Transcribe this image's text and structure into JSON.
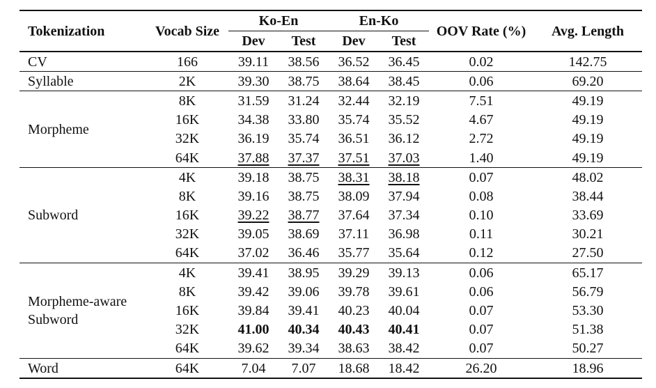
{
  "table": {
    "headers": {
      "tokenization": "Tokenization",
      "vocab_size": "Vocab Size",
      "ko_en": "Ko-En",
      "en_ko": "En-Ko",
      "dev": "Dev",
      "test": "Test",
      "oov_rate": "OOV Rate (%)",
      "avg_length": "Avg. Length"
    },
    "groups": [
      {
        "name_lines": [
          "CV"
        ],
        "rows": [
          {
            "vocab": "166",
            "koen_dev": "39.11",
            "koen_test": "38.56",
            "enko_dev": "36.52",
            "enko_test": "36.45",
            "oov": "0.02",
            "avg": "142.75"
          }
        ]
      },
      {
        "name_lines": [
          "Syllable"
        ],
        "rows": [
          {
            "vocab": "2K",
            "koen_dev": "39.30",
            "koen_test": "38.75",
            "enko_dev": "38.64",
            "enko_test": "38.45",
            "oov": "0.06",
            "avg": "69.20"
          }
        ]
      },
      {
        "name_lines": [
          "Morpheme"
        ],
        "rows": [
          {
            "vocab": "8K",
            "koen_dev": "31.59",
            "koen_test": "31.24",
            "enko_dev": "32.44",
            "enko_test": "32.19",
            "oov": "7.51",
            "avg": "49.19"
          },
          {
            "vocab": "16K",
            "koen_dev": "34.38",
            "koen_test": "33.80",
            "enko_dev": "35.74",
            "enko_test": "35.52",
            "oov": "4.67",
            "avg": "49.19"
          },
          {
            "vocab": "32K",
            "koen_dev": "36.19",
            "koen_test": "35.74",
            "enko_dev": "36.51",
            "enko_test": "36.12",
            "oov": "2.72",
            "avg": "49.19"
          },
          {
            "vocab": "64K",
            "koen_dev": "37.88",
            "koen_test": "37.37",
            "enko_dev": "37.51",
            "enko_test": "37.03",
            "oov": "1.40",
            "avg": "49.19",
            "underline": [
              "koen_dev",
              "koen_test",
              "enko_dev",
              "enko_test"
            ]
          }
        ]
      },
      {
        "name_lines": [
          "Subword"
        ],
        "rows": [
          {
            "vocab": "4K",
            "koen_dev": "39.18",
            "koen_test": "38.75",
            "enko_dev": "38.31",
            "enko_test": "38.18",
            "oov": "0.07",
            "avg": "48.02",
            "underline": [
              "enko_dev",
              "enko_test"
            ]
          },
          {
            "vocab": "8K",
            "koen_dev": "39.16",
            "koen_test": "38.75",
            "enko_dev": "38.09",
            "enko_test": "37.94",
            "oov": "0.08",
            "avg": "38.44"
          },
          {
            "vocab": "16K",
            "koen_dev": "39.22",
            "koen_test": "38.77",
            "enko_dev": "37.64",
            "enko_test": "37.34",
            "oov": "0.10",
            "avg": "33.69",
            "underline": [
              "koen_dev",
              "koen_test"
            ]
          },
          {
            "vocab": "32K",
            "koen_dev": "39.05",
            "koen_test": "38.69",
            "enko_dev": "37.11",
            "enko_test": "36.98",
            "oov": "0.11",
            "avg": "30.21"
          },
          {
            "vocab": "64K",
            "koen_dev": "37.02",
            "koen_test": "36.46",
            "enko_dev": "35.77",
            "enko_test": "35.64",
            "oov": "0.12",
            "avg": "27.50"
          }
        ]
      },
      {
        "name_lines": [
          "Morpheme-aware",
          "Subword"
        ],
        "rows": [
          {
            "vocab": "4K",
            "koen_dev": "39.41",
            "koen_test": "38.95",
            "enko_dev": "39.29",
            "enko_test": "39.13",
            "oov": "0.06",
            "avg": "65.17"
          },
          {
            "vocab": "8K",
            "koen_dev": "39.42",
            "koen_test": "39.06",
            "enko_dev": "39.78",
            "enko_test": "39.61",
            "oov": "0.06",
            "avg": "56.79"
          },
          {
            "vocab": "16K",
            "koen_dev": "39.84",
            "koen_test": "39.41",
            "enko_dev": "40.23",
            "enko_test": "40.04",
            "oov": "0.07",
            "avg": "53.30"
          },
          {
            "vocab": "32K",
            "koen_dev": "41.00",
            "koen_test": "40.34",
            "enko_dev": "40.43",
            "enko_test": "40.41",
            "oov": "0.07",
            "avg": "51.38",
            "bold": [
              "koen_dev",
              "koen_test",
              "enko_dev",
              "enko_test"
            ]
          },
          {
            "vocab": "64K",
            "koen_dev": "39.62",
            "koen_test": "39.34",
            "enko_dev": "38.63",
            "enko_test": "38.42",
            "oov": "0.07",
            "avg": "50.27"
          }
        ]
      },
      {
        "name_lines": [
          "Word"
        ],
        "rows": [
          {
            "vocab": "64K",
            "koen_dev": "7.04",
            "koen_test": "7.07",
            "enko_dev": "18.68",
            "enko_test": "18.42",
            "oov": "26.20",
            "avg": "18.96"
          }
        ]
      }
    ]
  }
}
